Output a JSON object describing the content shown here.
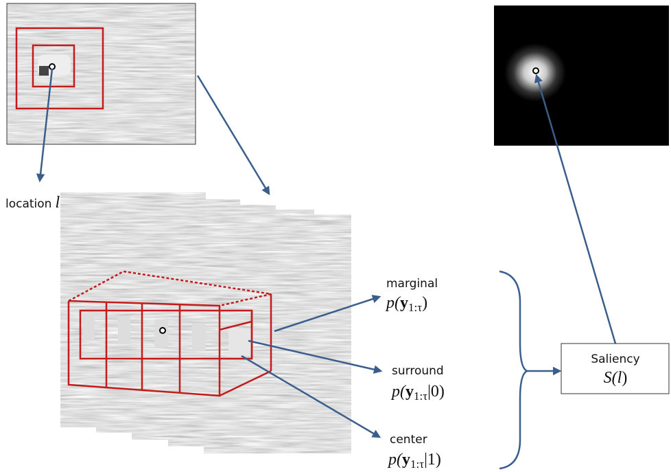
{
  "location": {
    "text": "location",
    "var": "l"
  },
  "marginal": {
    "label": "marginal",
    "formula": {
      "prefix": "p(",
      "var": "y",
      "sub": "1:τ",
      "suffix": ")"
    }
  },
  "surround": {
    "label": "surround",
    "formula": {
      "prefix": "p(",
      "var": "y",
      "sub": "1:τ",
      "suffix": "|0)"
    }
  },
  "center": {
    "label": "center",
    "formula": {
      "prefix": "p(",
      "var": "y",
      "sub": "1:τ",
      "suffix": "|1)"
    }
  },
  "saliency": {
    "title": "Saliency",
    "formula": {
      "prefix": "S(",
      "var": "l",
      "suffix": ")"
    }
  }
}
